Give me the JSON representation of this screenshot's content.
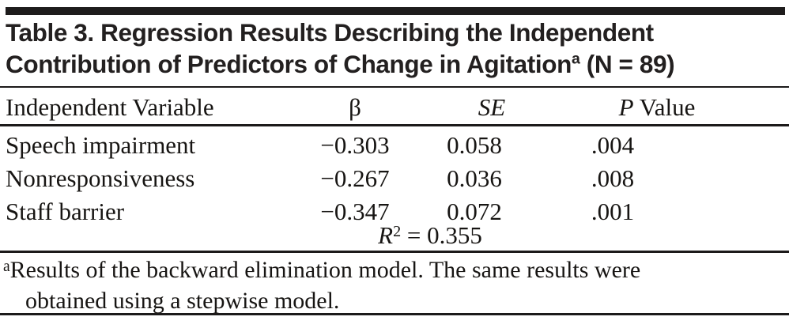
{
  "title": {
    "line1": "Table 3. Regression Results Describing the Independent",
    "line2_main": "Contribution of Predictors of Change in Agitation",
    "line2_sup": "a",
    "line2_tail": " (N = 89)"
  },
  "table": {
    "header": {
      "variable": "Independent Variable",
      "beta": "β",
      "se": "SE",
      "p_italic": "P",
      "p_rest": " Value"
    },
    "rows": [
      {
        "variable": "Speech impairment",
        "beta": "−0.303",
        "se": "0.058",
        "p": ".004"
      },
      {
        "variable": "Nonresponsiveness",
        "beta": "−0.267",
        "se": "0.036",
        "p": ".008"
      },
      {
        "variable": "Staff barrier",
        "beta": "−0.347",
        "se": "0.072",
        "p": ".001"
      }
    ],
    "r_squared": {
      "symbol": "R",
      "exponent": "2",
      "value": " = 0.355"
    }
  },
  "footnote": {
    "marker": "a",
    "line1": "Results of the backward elimination model. The same results were",
    "line2": "obtained using a stepwise model."
  },
  "colors": {
    "ink": "#171513",
    "title_ink": "#232020",
    "rule": "#1c1a1a",
    "background": "#ffffff"
  }
}
